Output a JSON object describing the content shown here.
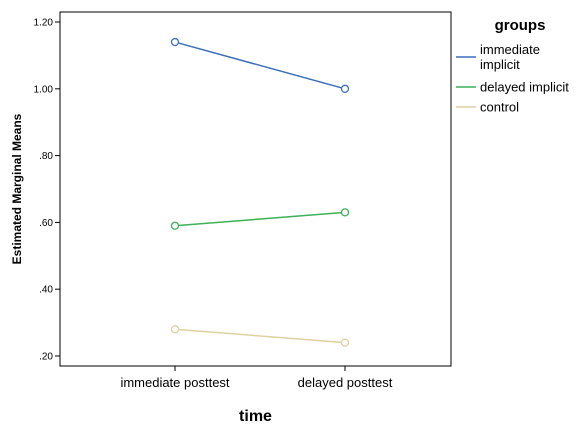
{
  "chart_data": {
    "type": "line",
    "categories": [
      "immediate posttest",
      "delayed posttest"
    ],
    "series": [
      {
        "name": "immediate implicit",
        "values": [
          1.14,
          1.0
        ],
        "color": "#3a6fba"
      },
      {
        "name": "delayed implicit",
        "values": [
          0.59,
          0.63
        ],
        "color": "#3db157"
      },
      {
        "name": "control",
        "values": [
          0.28,
          0.24
        ],
        "color": "#e0cf9f"
      }
    ],
    "xlabel": "time",
    "ylabel": "Estimated Marginal Means",
    "ylim": [
      0.17,
      1.23
    ],
    "yticks": [
      0.2,
      0.4,
      0.6,
      0.8,
      1.0,
      1.2
    ],
    "ytick_labels": [
      ".20",
      ".40",
      ".60",
      ".80",
      "1.00",
      "1.20"
    ],
    "legend": {
      "title": "groups",
      "placement": "right"
    },
    "grid": false
  }
}
